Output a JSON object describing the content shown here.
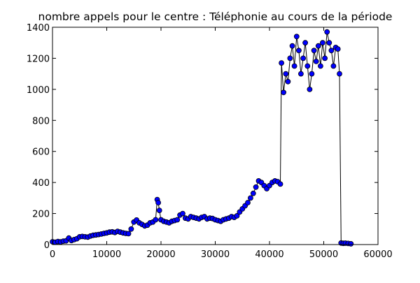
{
  "chart_data": {
    "type": "scatter",
    "title": "nombre appels pour le centre : Téléphonie au cours de la période",
    "xlabel": "",
    "ylabel": "",
    "xlim": [
      0,
      60000
    ],
    "ylim": [
      0,
      1400
    ],
    "x_ticks": [
      0,
      10000,
      20000,
      30000,
      40000,
      50000,
      60000
    ],
    "y_ticks": [
      0,
      200,
      400,
      600,
      800,
      1000,
      1200,
      1400
    ],
    "grid": false,
    "legend": "none",
    "marker_color": "#0000ff",
    "marker_edge_color": "#000000",
    "line_color": "#000000",
    "marker": "circle",
    "points": [
      [
        0,
        18
      ],
      [
        500,
        15
      ],
      [
        1000,
        20
      ],
      [
        1500,
        17
      ],
      [
        2000,
        22
      ],
      [
        2500,
        24
      ],
      [
        3000,
        42
      ],
      [
        3500,
        26
      ],
      [
        4000,
        32
      ],
      [
        4500,
        38
      ],
      [
        5000,
        50
      ],
      [
        5500,
        52
      ],
      [
        6000,
        50
      ],
      [
        6500,
        48
      ],
      [
        7000,
        55
      ],
      [
        7500,
        60
      ],
      [
        8000,
        62
      ],
      [
        8500,
        65
      ],
      [
        9000,
        68
      ],
      [
        9500,
        72
      ],
      [
        10000,
        75
      ],
      [
        10500,
        80
      ],
      [
        11000,
        82
      ],
      [
        11500,
        78
      ],
      [
        12000,
        85
      ],
      [
        12500,
        80
      ],
      [
        13000,
        75
      ],
      [
        13500,
        72
      ],
      [
        14000,
        70
      ],
      [
        14500,
        100
      ],
      [
        15000,
        145
      ],
      [
        15500,
        158
      ],
      [
        16000,
        140
      ],
      [
        16500,
        130
      ],
      [
        17000,
        120
      ],
      [
        17500,
        125
      ],
      [
        18000,
        140
      ],
      [
        18500,
        145
      ],
      [
        19000,
        160
      ],
      [
        19300,
        290
      ],
      [
        19500,
        270
      ],
      [
        19700,
        220
      ],
      [
        20000,
        160
      ],
      [
        20500,
        150
      ],
      [
        21000,
        145
      ],
      [
        21500,
        140
      ],
      [
        22000,
        150
      ],
      [
        22500,
        155
      ],
      [
        23000,
        160
      ],
      [
        23500,
        190
      ],
      [
        24000,
        200
      ],
      [
        24500,
        170
      ],
      [
        25000,
        165
      ],
      [
        25500,
        180
      ],
      [
        26000,
        175
      ],
      [
        26500,
        170
      ],
      [
        27000,
        165
      ],
      [
        27500,
        175
      ],
      [
        28000,
        180
      ],
      [
        28500,
        165
      ],
      [
        29000,
        170
      ],
      [
        29500,
        168
      ],
      [
        30000,
        160
      ],
      [
        30500,
        155
      ],
      [
        31000,
        150
      ],
      [
        31500,
        160
      ],
      [
        32000,
        165
      ],
      [
        32500,
        170
      ],
      [
        33000,
        180
      ],
      [
        33500,
        175
      ],
      [
        34000,
        185
      ],
      [
        34500,
        210
      ],
      [
        35000,
        230
      ],
      [
        35500,
        250
      ],
      [
        36000,
        270
      ],
      [
        36500,
        300
      ],
      [
        37000,
        330
      ],
      [
        37500,
        370
      ],
      [
        38000,
        410
      ],
      [
        38500,
        400
      ],
      [
        39000,
        380
      ],
      [
        39500,
        360
      ],
      [
        40000,
        380
      ],
      [
        40500,
        400
      ],
      [
        41000,
        410
      ],
      [
        41500,
        405
      ],
      [
        42000,
        390
      ],
      [
        42200,
        1170
      ],
      [
        42600,
        980
      ],
      [
        43000,
        1100
      ],
      [
        43400,
        1050
      ],
      [
        43800,
        1200
      ],
      [
        44200,
        1280
      ],
      [
        44600,
        1150
      ],
      [
        45000,
        1340
      ],
      [
        45400,
        1250
      ],
      [
        45800,
        1100
      ],
      [
        46200,
        1200
      ],
      [
        46600,
        1300
      ],
      [
        47000,
        1150
      ],
      [
        47400,
        1000
      ],
      [
        47800,
        1100
      ],
      [
        48200,
        1250
      ],
      [
        48600,
        1180
      ],
      [
        49000,
        1280
      ],
      [
        49400,
        1150
      ],
      [
        49800,
        1300
      ],
      [
        50200,
        1200
      ],
      [
        50600,
        1370
      ],
      [
        51000,
        1300
      ],
      [
        51400,
        1250
      ],
      [
        51800,
        1150
      ],
      [
        52200,
        1270
      ],
      [
        52600,
        1260
      ],
      [
        52900,
        1100
      ],
      [
        53200,
        10
      ],
      [
        53600,
        8
      ],
      [
        54000,
        9
      ],
      [
        54500,
        7
      ],
      [
        55000,
        5
      ]
    ]
  }
}
